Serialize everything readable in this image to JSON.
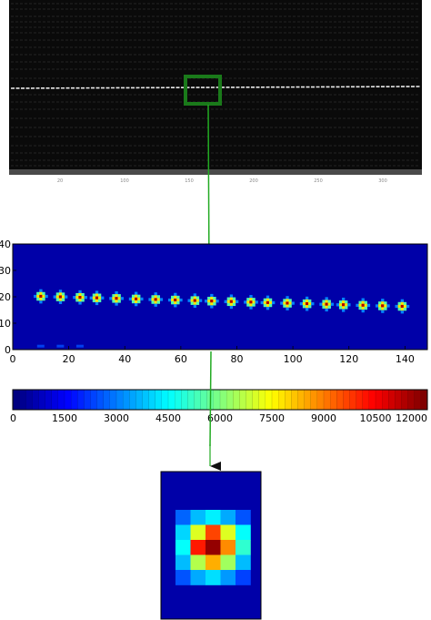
{
  "top_image": {
    "x_ticks": [
      "20",
      "100",
      "150",
      "200",
      "250",
      "300"
    ]
  },
  "heatmap": {
    "y_ticks": [
      "40",
      "30",
      "20",
      "10",
      "0"
    ],
    "x_ticks": [
      "0",
      "20",
      "40",
      "60",
      "80",
      "100",
      "120",
      "140"
    ],
    "x_range": [
      0,
      148
    ],
    "y_range": [
      0,
      40
    ],
    "spot_centers_x": [
      10,
      17,
      24,
      30,
      37,
      44,
      51,
      58,
      65,
      71,
      78,
      85,
      91,
      98,
      105,
      112,
      118,
      125,
      132,
      139
    ],
    "spot_centers_y": [
      20.2,
      20.0,
      19.8,
      19.6,
      19.4,
      19.2,
      19.0,
      18.8,
      18.6,
      18.4,
      18.2,
      18.0,
      17.8,
      17.6,
      17.4,
      17.2,
      17.0,
      16.8,
      16.6,
      16.4
    ]
  },
  "colorbar": {
    "min": 0,
    "max": 12000,
    "ticks": [
      "0",
      "1500",
      "3000",
      "4500",
      "6000",
      "7500",
      "9000",
      "10500",
      "12000"
    ]
  },
  "colors": {
    "zoom_box": "#1a7a1a",
    "arrow_line": "#22aa22",
    "heatmap_bg": "#0000a8"
  }
}
